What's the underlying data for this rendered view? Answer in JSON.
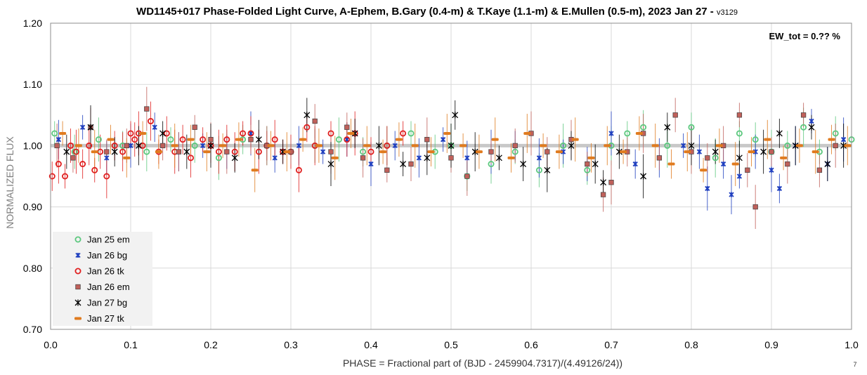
{
  "chart_data": {
    "type": "scatter",
    "title": "WD1145+017 Phase-Folded Light Curve, A-Ephem, B.Gary (0.4-m) & T.Kaye (1.1-m) & E.Mullen (0.5-m), 2023 Jan 27 - ",
    "title_version": "v3129",
    "xlabel": "PHASE = Fractional part of (BJD - 2459904.7317)/(4.49126/24))",
    "ylabel": "NORMALIZED FLUX",
    "xlim": [
      0.0,
      1.0
    ],
    "ylim": [
      0.7,
      1.2
    ],
    "x_ticks": [
      "0.0",
      "0.1",
      "0.2",
      "0.3",
      "0.4",
      "0.5",
      "0.6",
      "0.7",
      "0.8",
      "0.9",
      "1.0"
    ],
    "y_ticks": [
      "0.70",
      "0.80",
      "0.90",
      "1.00",
      "1.10",
      "1.20"
    ],
    "grid": true,
    "legend_position": "bottom-left",
    "annotation": "EW_tot = 0.?? %",
    "corner_note": "7",
    "reference_line_y": 1.0,
    "series": [
      {
        "name": "Jan 25 em",
        "marker": "open-circle",
        "color": "#5cc87e",
        "x": [
          0.005,
          0.03,
          0.06,
          0.09,
          0.12,
          0.15,
          0.18,
          0.21,
          0.24,
          0.27,
          0.3,
          0.33,
          0.36,
          0.39,
          0.42,
          0.45,
          0.48,
          0.5,
          0.52,
          0.55,
          0.58,
          0.61,
          0.64,
          0.67,
          0.7,
          0.72,
          0.74,
          0.77,
          0.8,
          0.83,
          0.86,
          0.88,
          0.9,
          0.92,
          0.94,
          0.96,
          0.98,
          1.0
        ],
        "y": [
          1.02,
          0.99,
          1.01,
          1.0,
          0.99,
          1.01,
          1.0,
          0.98,
          1.01,
          1.0,
          0.99,
          1.0,
          1.01,
          0.99,
          1.0,
          1.02,
          0.99,
          1.0,
          0.95,
          0.97,
          0.99,
          0.96,
          1.0,
          0.96,
          1.0,
          1.02,
          1.03,
          1.0,
          1.03,
          0.98,
          1.02,
          1.01,
          0.99,
          1.0,
          1.03,
          0.99,
          1.02,
          1.01
        ]
      },
      {
        "name": "Jan 26 bg",
        "marker": "star",
        "color": "#1f3fbf",
        "x": [
          0.01,
          0.04,
          0.07,
          0.1,
          0.13,
          0.16,
          0.19,
          0.22,
          0.25,
          0.28,
          0.31,
          0.34,
          0.37,
          0.4,
          0.43,
          0.46,
          0.49,
          0.52,
          0.55,
          0.58,
          0.61,
          0.64,
          0.67,
          0.7,
          0.73,
          0.76,
          0.79,
          0.81,
          0.82,
          0.84,
          0.85,
          0.86,
          0.88,
          0.9,
          0.91,
          0.93,
          0.95,
          0.97,
          0.99
        ],
        "y": [
          1.01,
          1.03,
          0.98,
          1.0,
          1.03,
          0.99,
          1.0,
          0.99,
          1.02,
          0.98,
          1.0,
          0.99,
          1.01,
          0.97,
          1.0,
          0.98,
          1.01,
          0.98,
          0.99,
          1.0,
          0.98,
          0.99,
          0.97,
          1.02,
          0.97,
          0.98,
          1.0,
          0.99,
          0.93,
          0.97,
          0.92,
          0.95,
          0.99,
          0.96,
          0.93,
          1.0,
          1.04,
          0.97,
          1.01
        ]
      },
      {
        "name": "Jan 26 tk",
        "marker": "open-circle",
        "color": "#e01f1f",
        "x": [
          0.002,
          0.01,
          0.018,
          0.025,
          0.032,
          0.04,
          0.048,
          0.055,
          0.062,
          0.07,
          0.08,
          0.09,
          0.1,
          0.105,
          0.11,
          0.115,
          0.125,
          0.135,
          0.145,
          0.155,
          0.165,
          0.175,
          0.19,
          0.2,
          0.21,
          0.22,
          0.23,
          0.24,
          0.25,
          0.26,
          0.27,
          0.28,
          0.29,
          0.3,
          0.31,
          0.32,
          0.33,
          0.35,
          0.37,
          0.38,
          0.4,
          0.42,
          0.44
        ],
        "y": [
          0.95,
          0.97,
          0.95,
          1.0,
          0.99,
          0.97,
          1.0,
          0.96,
          0.99,
          0.95,
          1.0,
          0.99,
          1.02,
          1.01,
          1.02,
          1.0,
          1.04,
          0.99,
          1.02,
          0.99,
          1.01,
          0.98,
          1.01,
          1.0,
          0.99,
          1.01,
          0.99,
          1.02,
          1.02,
          0.99,
          1.0,
          1.01,
          0.99,
          0.99,
          0.96,
          1.03,
          1.0,
          1.02,
          1.01,
          1.02,
          0.99,
          1.0,
          1.02
        ]
      },
      {
        "name": "Jan 26 em",
        "marker": "square",
        "color": "#c0605a",
        "x": [
          0.008,
          0.028,
          0.05,
          0.07,
          0.095,
          0.12,
          0.14,
          0.16,
          0.18,
          0.2,
          0.22,
          0.25,
          0.27,
          0.3,
          0.33,
          0.35,
          0.37,
          0.39,
          0.42,
          0.45,
          0.47,
          0.5,
          0.52,
          0.55,
          0.58,
          0.6,
          0.62,
          0.65,
          0.67,
          0.69,
          0.7,
          0.72,
          0.74,
          0.76,
          0.78,
          0.8,
          0.82,
          0.84,
          0.86,
          0.87,
          0.88,
          0.9,
          0.92,
          0.94,
          0.96,
          0.98
        ],
        "y": [
          1.0,
          0.98,
          1.03,
          0.99,
          1.0,
          1.06,
          1.0,
          0.99,
          1.03,
          1.01,
          0.99,
          1.01,
          1.0,
          0.99,
          1.04,
          0.99,
          1.03,
          0.98,
          0.96,
          0.97,
          1.01,
          0.98,
          0.95,
          0.99,
          1.0,
          1.02,
          0.99,
          1.01,
          0.97,
          0.92,
          0.94,
          0.99,
          1.02,
          0.98,
          1.05,
          0.99,
          0.98,
          1.0,
          1.05,
          0.96,
          0.9,
          0.99,
          0.97,
          1.05,
          0.96,
          1.0
        ]
      },
      {
        "name": "Jan 27 bg",
        "marker": "asterisk",
        "color": "#000000",
        "x": [
          0.02,
          0.05,
          0.08,
          0.11,
          0.14,
          0.17,
          0.2,
          0.23,
          0.26,
          0.29,
          0.32,
          0.35,
          0.38,
          0.41,
          0.44,
          0.47,
          0.5,
          0.505,
          0.53,
          0.56,
          0.59,
          0.62,
          0.65,
          0.68,
          0.69,
          0.71,
          0.74,
          0.77,
          0.8,
          0.83,
          0.86,
          0.89,
          0.91,
          0.93,
          0.95,
          0.97,
          0.99
        ],
        "y": [
          0.99,
          1.03,
          0.99,
          1.0,
          1.02,
          0.99,
          1.0,
          0.98,
          1.01,
          0.99,
          1.05,
          0.97,
          1.02,
          1.0,
          0.97,
          0.98,
          1.0,
          1.05,
          0.99,
          0.98,
          0.97,
          0.96,
          1.0,
          0.97,
          0.94,
          0.99,
          0.95,
          1.03,
          1.0,
          0.99,
          0.98,
          0.99,
          1.02,
          1.0,
          1.03,
          0.97,
          1.0
        ]
      },
      {
        "name": "Jan 27 tk",
        "marker": "dash",
        "color": "#e07b1f",
        "x": [
          0.015,
          0.035,
          0.055,
          0.075,
          0.095,
          0.115,
          0.135,
          0.155,
          0.175,
          0.195,
          0.215,
          0.235,
          0.255,
          0.275,
          0.295,
          0.315,
          0.335,
          0.355,
          0.375,
          0.395,
          0.415,
          0.435,
          0.455,
          0.475,
          0.495,
          0.515,
          0.535,
          0.555,
          0.575,
          0.595,
          0.615,
          0.635,
          0.655,
          0.675,
          0.695,
          0.715,
          0.735,
          0.755,
          0.775,
          0.795,
          0.815,
          0.835,
          0.855,
          0.875,
          0.895,
          0.915,
          0.935,
          0.955,
          0.975,
          0.995
        ],
        "y": [
          1.02,
          1.0,
          0.99,
          1.01,
          0.98,
          1.02,
          0.99,
          1.0,
          1.01,
          0.99,
          1.0,
          1.01,
          0.96,
          1.0,
          0.99,
          1.01,
          1.0,
          0.98,
          1.02,
          1.0,
          0.99,
          1.01,
          1.0,
          0.99,
          1.02,
          1.0,
          0.99,
          1.01,
          0.98,
          1.02,
          1.0,
          0.99,
          1.01,
          0.98,
          1.0,
          0.99,
          1.02,
          1.0,
          0.97,
          0.99,
          0.96,
          1.0,
          0.97,
          0.99,
          1.01,
          0.98,
          1.0,
          0.99,
          1.01,
          1.0
        ]
      }
    ]
  }
}
